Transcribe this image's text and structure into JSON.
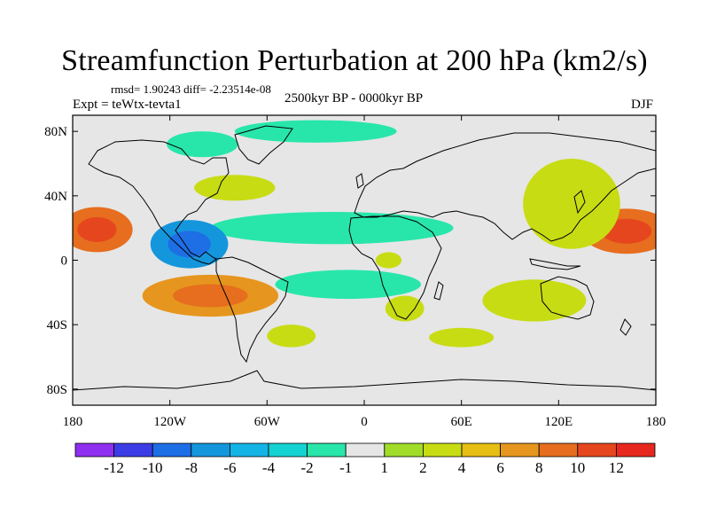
{
  "header": {
    "title": "Streamfunction Perturbation at 200 hPa (km2/s)",
    "stats": "rmsd= 1.90243 diff= -2.23514e-08",
    "expt": "Expt = teWtx-tevta1",
    "period": "2500kyr BP - 0000kyr BP",
    "season": "DJF"
  },
  "chart_data": {
    "type": "heatmap",
    "projection": "cylindrical-equidistant",
    "xlim": [
      -180,
      180
    ],
    "ylim": [
      -90,
      90
    ],
    "x_ticks": [
      {
        "value": -180,
        "label": "180"
      },
      {
        "value": -120,
        "label": "120W"
      },
      {
        "value": -60,
        "label": "60W"
      },
      {
        "value": 0,
        "label": "0"
      },
      {
        "value": 60,
        "label": "60E"
      },
      {
        "value": 120,
        "label": "120E"
      },
      {
        "value": 180,
        "label": "180"
      }
    ],
    "y_ticks": [
      {
        "value": 80,
        "label": "80N"
      },
      {
        "value": 40,
        "label": "40N"
      },
      {
        "value": 0,
        "label": "0"
      },
      {
        "value": -40,
        "label": "40S"
      },
      {
        "value": -80,
        "label": "80S"
      }
    ],
    "colorbar": {
      "levels": [
        "-12",
        "-10",
        "-8",
        "-6",
        "-4",
        "-2",
        "-1",
        "1",
        "2",
        "4",
        "6",
        "8",
        "10",
        "12"
      ],
      "colors": [
        "#8f2ff0",
        "#3c3ce6",
        "#1e6ee6",
        "#1496dc",
        "#14b4e6",
        "#14d2d2",
        "#28e6aa",
        "#e6e6e6",
        "#a0dc28",
        "#c8dc14",
        "#e6be14",
        "#e6961e",
        "#e66e1e",
        "#e6461e",
        "#e6281e"
      ]
    },
    "regions": [
      {
        "name": "north-pacific-east-positive",
        "lon": -165,
        "lat": 19,
        "rlon": 22,
        "rlat": 14,
        "value": 8
      },
      {
        "name": "north-pacific-west-positive",
        "lon": 162,
        "lat": 18,
        "rlon": 28,
        "rlat": 14,
        "value": 8
      },
      {
        "name": "east-asia-positive",
        "lon": 128,
        "lat": 35,
        "rlon": 30,
        "rlat": 28,
        "value": 2
      },
      {
        "name": "tropical-band-negative",
        "lon": -20,
        "lat": 20,
        "rlon": 75,
        "rlat": 10,
        "value": -2
      },
      {
        "name": "east-pacific-tropical-negative",
        "lon": -108,
        "lat": 10,
        "rlon": 24,
        "rlat": 15,
        "value": -8
      },
      {
        "name": "south-pacific-positive",
        "lon": -95,
        "lat": -22,
        "rlon": 42,
        "rlat": 13,
        "value": 6
      },
      {
        "name": "arctic-atlantic-negative",
        "lon": -30,
        "lat": 80,
        "rlon": 50,
        "rlat": 7,
        "value": -2
      },
      {
        "name": "north-america-arctic-negative",
        "lon": -100,
        "lat": 72,
        "rlon": 22,
        "rlat": 8,
        "value": -2
      },
      {
        "name": "australia-positive",
        "lon": 105,
        "lat": -25,
        "rlon": 32,
        "rlat": 13,
        "value": 2
      },
      {
        "name": "south-africa-positive",
        "lon": 25,
        "lat": -30,
        "rlon": 12,
        "rlat": 8,
        "value": 2
      },
      {
        "name": "africa-tropical-positive",
        "lon": 15,
        "lat": 0,
        "rlon": 8,
        "rlat": 5,
        "value": 2
      },
      {
        "name": "south-atlantic-negative",
        "lon": -10,
        "lat": -15,
        "rlon": 45,
        "rlat": 9,
        "value": -2
      },
      {
        "name": "southern-ocean-west-positive",
        "lon": -45,
        "lat": -47,
        "rlon": 15,
        "rlat": 7,
        "value": 2
      },
      {
        "name": "southern-ocean-east-positive",
        "lon": 60,
        "lat": -48,
        "rlon": 20,
        "rlat": 6,
        "value": 2
      },
      {
        "name": "north-atlantic-positive",
        "lon": -80,
        "lat": 45,
        "rlon": 25,
        "rlat": 8,
        "value": 2
      }
    ]
  }
}
